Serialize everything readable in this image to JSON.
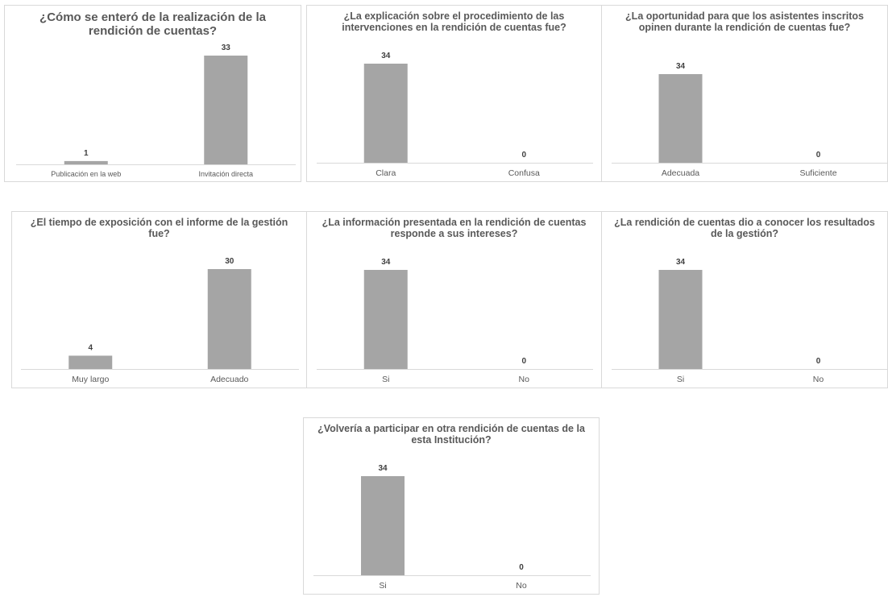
{
  "chart_data": [
    {
      "type": "bar",
      "title": "¿Cómo se enteró de la realización de la rendición de cuentas?",
      "categories": [
        "Publicación en la web",
        "Invitación directa"
      ],
      "values": [
        1,
        33
      ],
      "ylim": [
        0,
        33
      ],
      "grid": false
    },
    {
      "type": "bar",
      "title": "¿La explicación sobre el procedimiento de las intervenciones en la rendición de cuentas fue?",
      "categories": [
        "Clara",
        "Confusa"
      ],
      "values": [
        34,
        0
      ],
      "ylim": [
        0,
        34
      ],
      "grid": false
    },
    {
      "type": "bar",
      "title": "¿La oportunidad para que los asistentes inscritos opinen durante la rendición de cuentas fue?",
      "categories": [
        "Adecuada",
        "Suficiente"
      ],
      "values": [
        34,
        0
      ],
      "ylim": [
        0,
        34
      ],
      "grid": false
    },
    {
      "type": "bar",
      "title": "¿El tiempo de exposición con el informe de la gestión fue?",
      "categories": [
        "Muy largo",
        "Adecuado"
      ],
      "values": [
        4,
        30
      ],
      "ylim": [
        0,
        30
      ],
      "grid": false
    },
    {
      "type": "bar",
      "title": "¿La información presentada en la rendición de cuentas responde a sus intereses?",
      "categories": [
        "Si",
        "No"
      ],
      "values": [
        34,
        0
      ],
      "ylim": [
        0,
        34
      ],
      "grid": false
    },
    {
      "type": "bar",
      "title": "¿La rendición de cuentas dio a conocer los resultados de la gestión?",
      "categories": [
        "Si",
        "No"
      ],
      "values": [
        34,
        0
      ],
      "ylim": [
        0,
        34
      ],
      "grid": false
    },
    {
      "type": "bar",
      "title": "¿Volvería a participar en otra rendición de cuentas de la esta Institución?",
      "categories": [
        "Si",
        "No"
      ],
      "values": [
        34,
        0
      ],
      "ylim": [
        0,
        34
      ],
      "grid": false
    }
  ],
  "colors": {
    "bar": "#a5a5a5",
    "axis": "#d9d9d9",
    "title": "#595959",
    "value_label": "#404040"
  }
}
